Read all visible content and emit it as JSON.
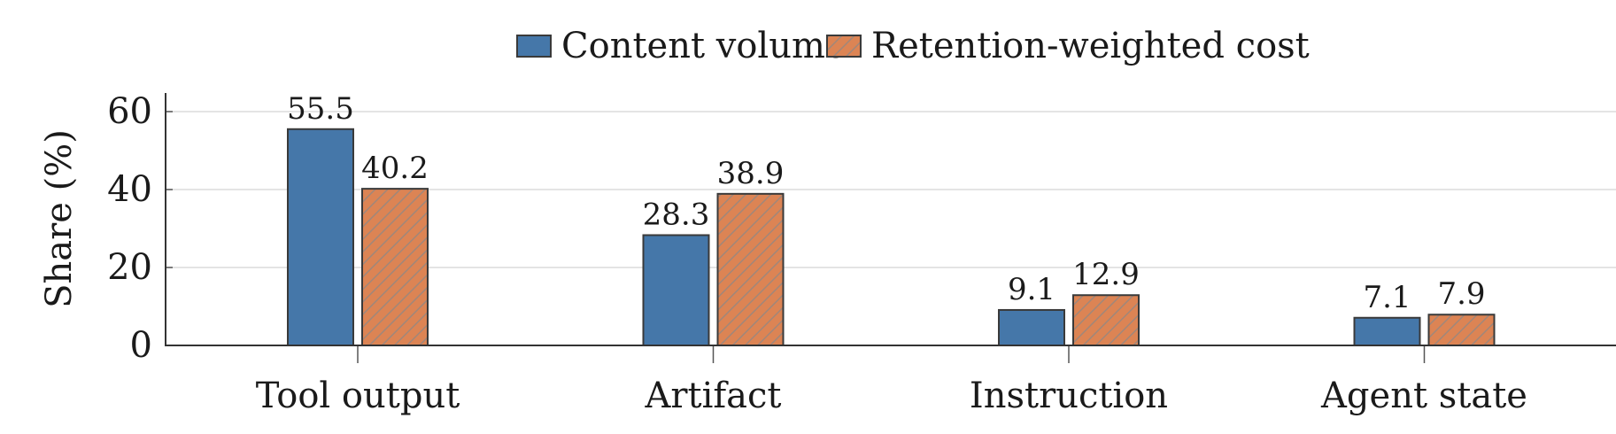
{
  "chart_data": {
    "type": "bar",
    "categories": [
      "Tool output",
      "Artifact",
      "Instruction",
      "Agent state"
    ],
    "series": [
      {
        "name": "Content volume",
        "values": [
          55.5,
          28.3,
          9.1,
          7.1
        ],
        "color": "#4577a9",
        "pattern": "solid"
      },
      {
        "name": "Retention-weighted cost",
        "values": [
          40.2,
          38.9,
          12.9,
          7.9
        ],
        "color": "#dc8454",
        "pattern": "hatched"
      }
    ],
    "value_labels": [
      [
        "55.5",
        "28.3",
        "9.1",
        "7.1"
      ],
      [
        "40.2",
        "38.9",
        "12.9",
        "7.9"
      ]
    ],
    "ylabel": "Share (%)",
    "xlabel": "",
    "ylim": [
      0,
      60
    ],
    "yticks": [
      "0",
      "20",
      "40",
      "60"
    ],
    "grid": true,
    "legend_position": "top-center"
  }
}
